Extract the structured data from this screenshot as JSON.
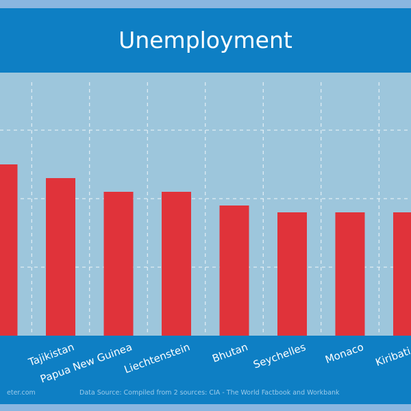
{
  "chart_data": {
    "type": "bar",
    "title": "Unemployment",
    "categories": [
      "",
      "Tajikistan",
      "Papua New Guinea",
      "Liechtenstein",
      "Bhutan",
      "Seychelles",
      "Monaco",
      "Kiribati Is"
    ],
    "values": [
      2.5,
      2.3,
      2.1,
      2.1,
      1.9,
      1.8,
      1.8,
      1.8
    ],
    "ylim": [
      0,
      4
    ],
    "grid": true,
    "colors": {
      "bar": "#e0333a",
      "header": "#0e7fc4",
      "plot_bg": "#9dc6dc",
      "page_bg": "#8ab6e0"
    }
  },
  "footer": {
    "site": "eter.com",
    "source": "Data Source: Compiled from 2 sources: CIA - The World Factbook and Workbank"
  }
}
